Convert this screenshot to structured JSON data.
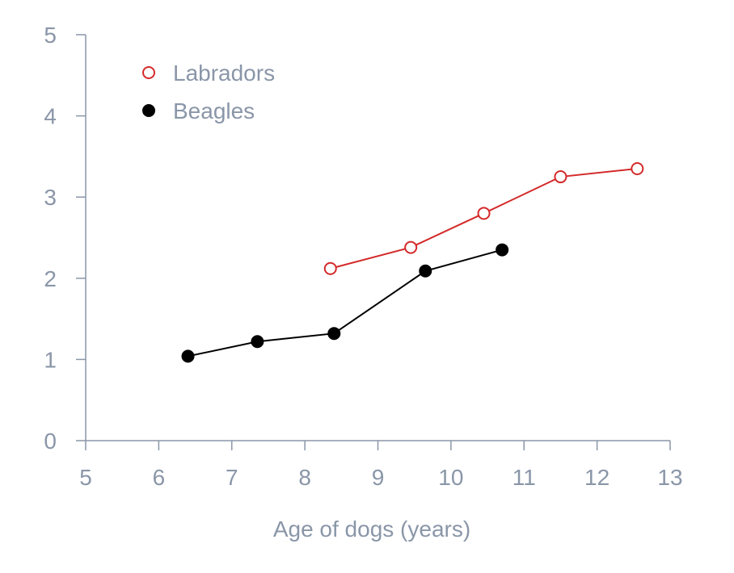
{
  "chart_data": {
    "type": "line",
    "title": "",
    "xlabel": "Age of dogs (years)",
    "ylabel": "",
    "xlim": [
      5,
      13
    ],
    "ylim": [
      0,
      5
    ],
    "x_ticks": [
      5,
      6,
      7,
      8,
      9,
      10,
      11,
      12,
      13
    ],
    "y_ticks": [
      0,
      1,
      2,
      3,
      4,
      5
    ],
    "grid": false,
    "legend_position": "top-left",
    "series": [
      {
        "name": "Labradors",
        "color": "#d42a2a",
        "marker": "open-circle",
        "x": [
          8.35,
          9.45,
          10.45,
          11.5,
          12.55
        ],
        "y": [
          2.12,
          2.38,
          2.8,
          3.25,
          3.35
        ]
      },
      {
        "name": "Beagles",
        "color": "#000000",
        "marker": "filled-circle",
        "x": [
          6.4,
          7.35,
          8.4,
          9.65,
          10.7
        ],
        "y": [
          1.04,
          1.22,
          1.32,
          2.09,
          2.35
        ]
      }
    ],
    "axis_color": "#8a96a8"
  }
}
